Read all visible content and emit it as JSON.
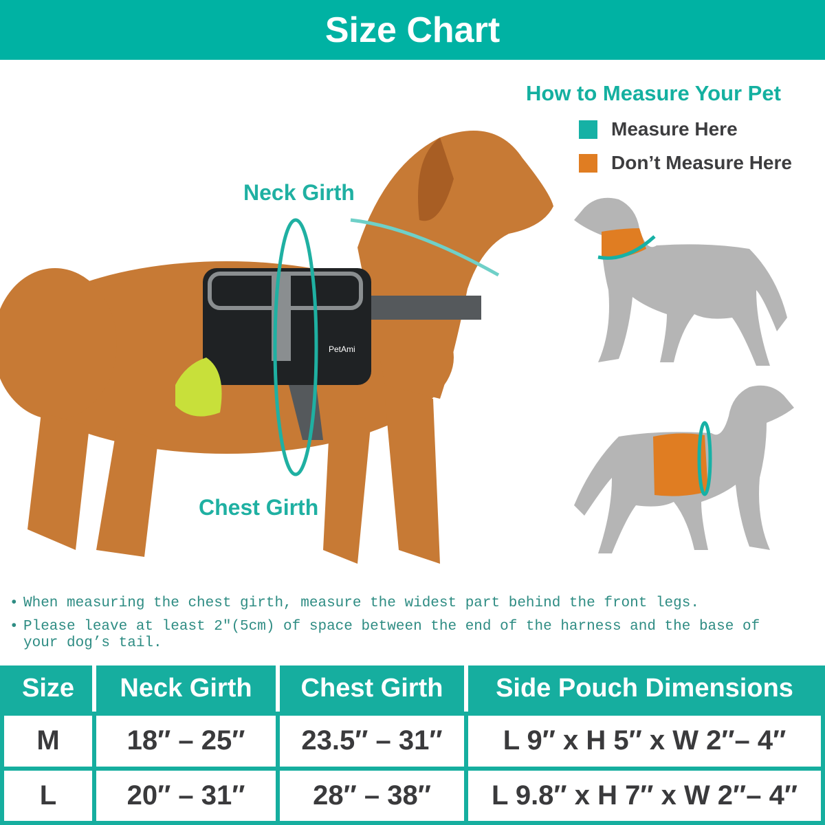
{
  "header": {
    "title": "Size Chart"
  },
  "legend": {
    "title": "How to Measure Your Pet",
    "items": [
      {
        "label": "Measure Here",
        "color": "#16b1a5"
      },
      {
        "label": "Don’t Measure Here",
        "color": "#e07d22"
      }
    ]
  },
  "photo": {
    "labels": {
      "neck": "Neck Girth",
      "chest": "Chest Girth"
    },
    "brand": "PetAmi"
  },
  "notes": [
    "When measuring the chest girth, measure the widest part behind the front legs.",
    "Please leave at least 2″(5cm) of space between the end of the harness and the base of your dog’s tail."
  ],
  "table": {
    "headers": [
      "Size",
      "Neck Girth",
      "Chest Girth",
      "Side Pouch Dimensions"
    ],
    "rows": [
      [
        "M",
        "18″ – 25″",
        "23.5″ – 31″",
        "L 9″ x H 5″ x W 2″– 4″"
      ],
      [
        "L",
        "20″ – 31″",
        "28″ – 38″",
        "L 9.8″ x H 7″ x W 2″– 4″"
      ]
    ]
  },
  "colors": {
    "accent": "#00b2a3",
    "measure": "#16b1a5",
    "dont_measure": "#e07d22",
    "silhouette": "#b5b5b5"
  }
}
